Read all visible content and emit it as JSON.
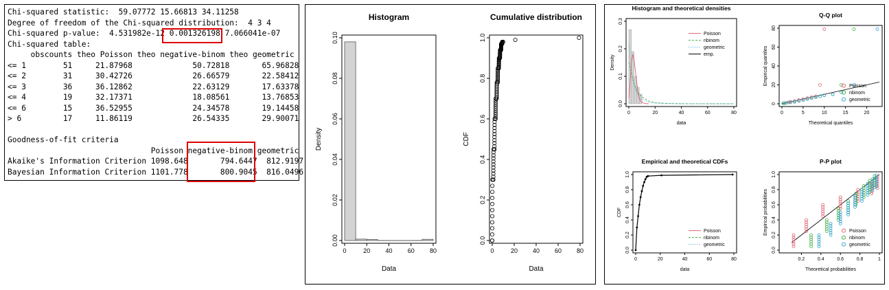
{
  "console": {
    "lines": [
      "Chi-squared statistic:  59.07772 15.66813 34.11258",
      "Degree of freedom of the Chi-squared distribution:  4 3 4",
      "Chi-squared p-value:  4.531982e-12 0.001326198 7.066041e-07",
      "Chi-squared table:",
      "     obscounts theo Poisson theo negative-binom theo geometric",
      "<= 1        51     21.87968             50.72818       65.96828",
      "<= 2        31     30.42726             26.66579       22.58412",
      "<= 3        36     36.12862             22.63129       17.63378",
      "<= 4        19     32.17371             18.08561       13.76853",
      "<= 6        15     36.52955             24.34578       19.14458",
      "> 6         17     11.86119             26.54335       29.90071",
      "",
      "Goodness-of-fit criteria",
      "                               Poisson negative-binom geometric",
      "Akaike's Information Criterion 1098.648       794.6447  812.9197",
      "Bayesian Information Criterion 1101.778       800.9045  816.0496"
    ]
  },
  "chart_data": [
    {
      "type": "bar",
      "title": "Histogram",
      "xlabel": "Data",
      "ylabel": "Density",
      "xlim": [
        0,
        80
      ],
      "ylim": [
        0,
        0.1
      ],
      "xticks": [
        0,
        20,
        40,
        60,
        80
      ],
      "yticks": [
        0.0,
        0.02,
        0.04,
        0.06,
        0.08,
        0.1
      ],
      "bins": [
        {
          "from": 0,
          "to": 10,
          "density": 0.098
        },
        {
          "from": 10,
          "to": 20,
          "density": 0.0007
        },
        {
          "from": 20,
          "to": 30,
          "density": 0.0005
        },
        {
          "from": 30,
          "to": 70,
          "density": 0.0
        },
        {
          "from": 70,
          "to": 80,
          "density": 0.0006
        }
      ]
    },
    {
      "type": "scatter",
      "title": "Cumulative distribution",
      "xlabel": "Data",
      "ylabel": "CDF",
      "xlim": [
        0,
        80
      ],
      "ylim": [
        0,
        1
      ],
      "xticks": [
        0,
        20,
        40,
        60,
        80
      ],
      "yticks": [
        0.0,
        0.2,
        0.4,
        0.6,
        0.8,
        1.0
      ],
      "points": [
        [
          0,
          0.0
        ],
        [
          1,
          0.3
        ],
        [
          2,
          0.45
        ],
        [
          3,
          0.6
        ],
        [
          4,
          0.7
        ],
        [
          5,
          0.78
        ],
        [
          6,
          0.85
        ],
        [
          7,
          0.9
        ],
        [
          8,
          0.94
        ],
        [
          9,
          0.97
        ],
        [
          10,
          0.98
        ],
        [
          21,
          0.99
        ],
        [
          79,
          1.0
        ]
      ]
    },
    {
      "type": "line",
      "title": "Histogram and theoretical densities",
      "xlabel": "data",
      "ylabel": "Density",
      "xlim": [
        0,
        80
      ],
      "ylim": [
        0,
        0.3
      ],
      "xticks": [
        0,
        20,
        40,
        60,
        80
      ],
      "yticks": [
        0.0,
        0.1,
        0.2,
        0.3
      ],
      "legend": [
        "Poisson",
        "nbinom",
        "geometric",
        "emp."
      ],
      "legend_colors": [
        "#e06070",
        "#40b040",
        "#30a0d0",
        "#000000"
      ],
      "bins": [
        {
          "from": 0,
          "to": 2,
          "density": 0.27
        },
        {
          "from": 2,
          "to": 4,
          "density": 0.19
        },
        {
          "from": 4,
          "to": 6,
          "density": 0.1
        },
        {
          "from": 6,
          "to": 8,
          "density": 0.06
        },
        {
          "from": 8,
          "to": 10,
          "density": 0.035
        }
      ],
      "series": [
        {
          "name": "Poisson",
          "x": [
            0,
            1,
            2,
            3,
            4,
            5,
            6,
            7,
            8,
            9,
            10,
            12,
            15
          ],
          "y": [
            0.02,
            0.08,
            0.15,
            0.18,
            0.16,
            0.12,
            0.08,
            0.04,
            0.02,
            0.01,
            0.005,
            0.001,
            0.0
          ]
        },
        {
          "name": "nbinom",
          "x": [
            0,
            1,
            2,
            3,
            4,
            6,
            8,
            10,
            15,
            20,
            30,
            40,
            60,
            80
          ],
          "y": [
            0.15,
            0.13,
            0.11,
            0.09,
            0.075,
            0.05,
            0.035,
            0.025,
            0.01,
            0.004,
            0.001,
            0.0003,
            0.0,
            0.0
          ]
        },
        {
          "name": "geometric",
          "x": [
            0,
            1,
            2,
            3,
            4,
            6,
            8,
            10,
            15,
            20,
            30,
            40,
            60,
            80
          ],
          "y": [
            0.22,
            0.16,
            0.12,
            0.09,
            0.07,
            0.04,
            0.025,
            0.015,
            0.005,
            0.002,
            0.0005,
            0.0001,
            0.0,
            0.0
          ]
        }
      ]
    },
    {
      "type": "scatter",
      "title": "Q-Q plot",
      "xlabel": "Theoretical quantiles",
      "ylabel": "Empirical quantiles",
      "xlim": [
        0,
        23
      ],
      "ylim": [
        0,
        80
      ],
      "xticks": [
        0,
        5,
        10,
        15,
        20
      ],
      "yticks": [
        0,
        20,
        40,
        60,
        80
      ],
      "legend": [
        "Poisson",
        "nbinom",
        "geometric"
      ],
      "legend_colors": [
        "#e06070",
        "#40b040",
        "#30a0d0"
      ],
      "series": [
        {
          "name": "Poisson",
          "x": [
            0.5,
            1,
            1.5,
            2,
            3,
            4,
            5,
            6,
            7,
            8,
            9,
            10
          ],
          "y": [
            0.5,
            1,
            1.5,
            2,
            3,
            4,
            5,
            6,
            7,
            8,
            20,
            79
          ]
        },
        {
          "name": "nbinom",
          "x": [
            0.5,
            1,
            2,
            3,
            4,
            5,
            6,
            7,
            8,
            9,
            10,
            12,
            14,
            17
          ],
          "y": [
            0.5,
            1,
            1.5,
            2,
            3,
            4,
            5,
            6,
            7,
            8,
            9,
            10,
            20,
            79
          ]
        },
        {
          "name": "geometric",
          "x": [
            0.3,
            1,
            2,
            3,
            4,
            5,
            6,
            7,
            8,
            9,
            10,
            12,
            14,
            17,
            22.5
          ],
          "y": [
            0.5,
            1,
            1.5,
            2,
            3,
            4,
            5,
            6,
            7,
            8,
            9,
            10,
            12,
            20,
            79
          ]
        }
      ]
    },
    {
      "type": "line",
      "title": "Empirical and theoretical CDFs",
      "xlabel": "data",
      "ylabel": "CDF",
      "xlim": [
        0,
        80
      ],
      "ylim": [
        0,
        1
      ],
      "xticks": [
        0,
        20,
        40,
        60,
        80
      ],
      "yticks": [
        0.0,
        0.2,
        0.4,
        0.6,
        0.8,
        1.0
      ],
      "legend": [
        "Poisson",
        "nbinom",
        "geometric"
      ],
      "legend_colors": [
        "#e06070",
        "#40b040",
        "#30a0d0"
      ],
      "points": [
        [
          0,
          0.0
        ],
        [
          1,
          0.3
        ],
        [
          2,
          0.45
        ],
        [
          3,
          0.6
        ],
        [
          4,
          0.7
        ],
        [
          5,
          0.78
        ],
        [
          6,
          0.85
        ],
        [
          7,
          0.9
        ],
        [
          8,
          0.94
        ],
        [
          9,
          0.97
        ],
        [
          10,
          0.98
        ],
        [
          21,
          0.99
        ],
        [
          79,
          1.0
        ]
      ]
    },
    {
      "type": "scatter",
      "title": "P-P plot",
      "xlabel": "Theoretical probabilities",
      "ylabel": "Empirical probabilities",
      "xlim": [
        0,
        1
      ],
      "ylim": [
        0,
        1
      ],
      "xticks": [
        0.2,
        0.4,
        0.6,
        0.8,
        1.0
      ],
      "yticks": [
        0.0,
        0.2,
        0.4,
        0.6,
        0.8,
        1.0
      ],
      "legend": [
        "Poisson",
        "nbinom",
        "geometric"
      ],
      "legend_colors": [
        "#e06070",
        "#40b040",
        "#30a0d0"
      ],
      "series": [
        {
          "name": "Poisson",
          "x": [
            0.12,
            0.25,
            0.42,
            0.6,
            0.78,
            0.92,
            0.98
          ],
          "y": [
            0.2,
            0.4,
            0.6,
            0.7,
            0.8,
            0.9,
            0.97
          ]
        },
        {
          "name": "nbinom",
          "x": [
            0.3,
            0.46,
            0.58,
            0.68,
            0.76,
            0.84,
            0.9,
            0.95
          ],
          "y": [
            0.2,
            0.4,
            0.55,
            0.65,
            0.75,
            0.85,
            0.92,
            0.98
          ]
        },
        {
          "name": "geometric",
          "x": [
            0.38,
            0.5,
            0.6,
            0.68,
            0.75,
            0.82,
            0.88,
            0.93,
            0.97
          ],
          "y": [
            0.2,
            0.35,
            0.5,
            0.62,
            0.72,
            0.8,
            0.88,
            0.94,
            0.99
          ]
        }
      ]
    }
  ]
}
